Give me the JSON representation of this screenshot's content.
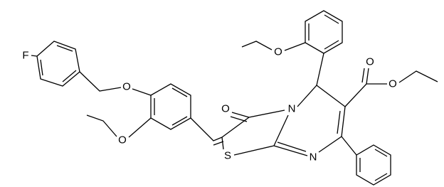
{
  "atoms": [
    {
      "label": "F"
    },
    {
      "label": "O"
    },
    {
      "label": "O"
    },
    {
      "label": "O"
    },
    {
      "label": "S"
    },
    {
      "label": "N"
    },
    {
      "label": "N"
    },
    {
      "label": "O"
    },
    {
      "label": "O"
    },
    {
      "label": "O"
    }
  ]
}
